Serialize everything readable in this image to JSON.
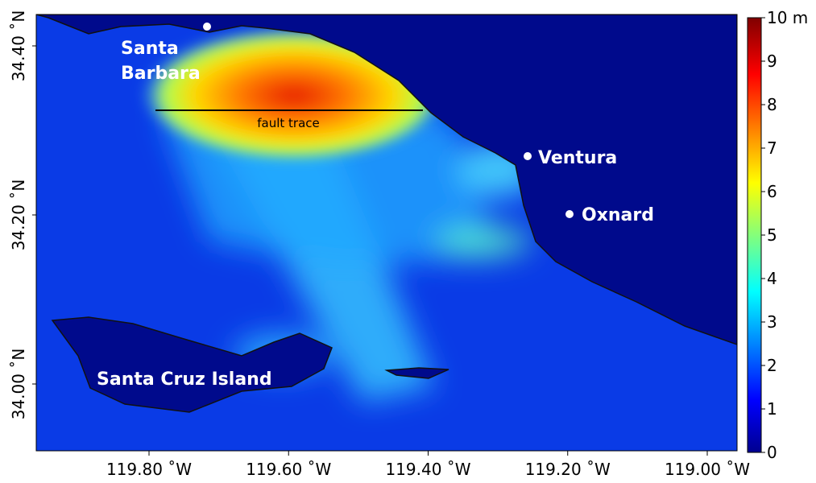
{
  "map": {
    "places": [
      {
        "lines": [
          "Santa",
          "Barbara"
        ]
      },
      {
        "lines": [
          "Ventura"
        ]
      },
      {
        "lines": [
          "Oxnard"
        ]
      },
      {
        "lines": [
          "Santa Cruz Island"
        ]
      }
    ],
    "annotation": "fault trace",
    "lat_ticks": [
      {
        "value": 34.4,
        "label": "34.40 ˚N"
      },
      {
        "value": 34.2,
        "label": "34.20 ˚N"
      },
      {
        "value": 34.0,
        "label": "34.00 ˚N"
      }
    ],
    "lon_ticks": [
      {
        "value": 119.8,
        "label": "119.80 ˚W"
      },
      {
        "value": 119.6,
        "label": "119.60 ˚W"
      },
      {
        "value": 119.4,
        "label": "119.40 ˚W"
      },
      {
        "value": 119.2,
        "label": "119.20 ˚W"
      },
      {
        "value": 119.0,
        "label": "119.00 ˚W"
      }
    ],
    "colorbar": {
      "lim": [
        0,
        10
      ],
      "ticks": [
        0,
        1,
        2,
        3,
        4,
        5,
        6,
        7,
        8,
        9,
        {
          "value": 10,
          "label": "10 m"
        }
      ]
    }
  }
}
